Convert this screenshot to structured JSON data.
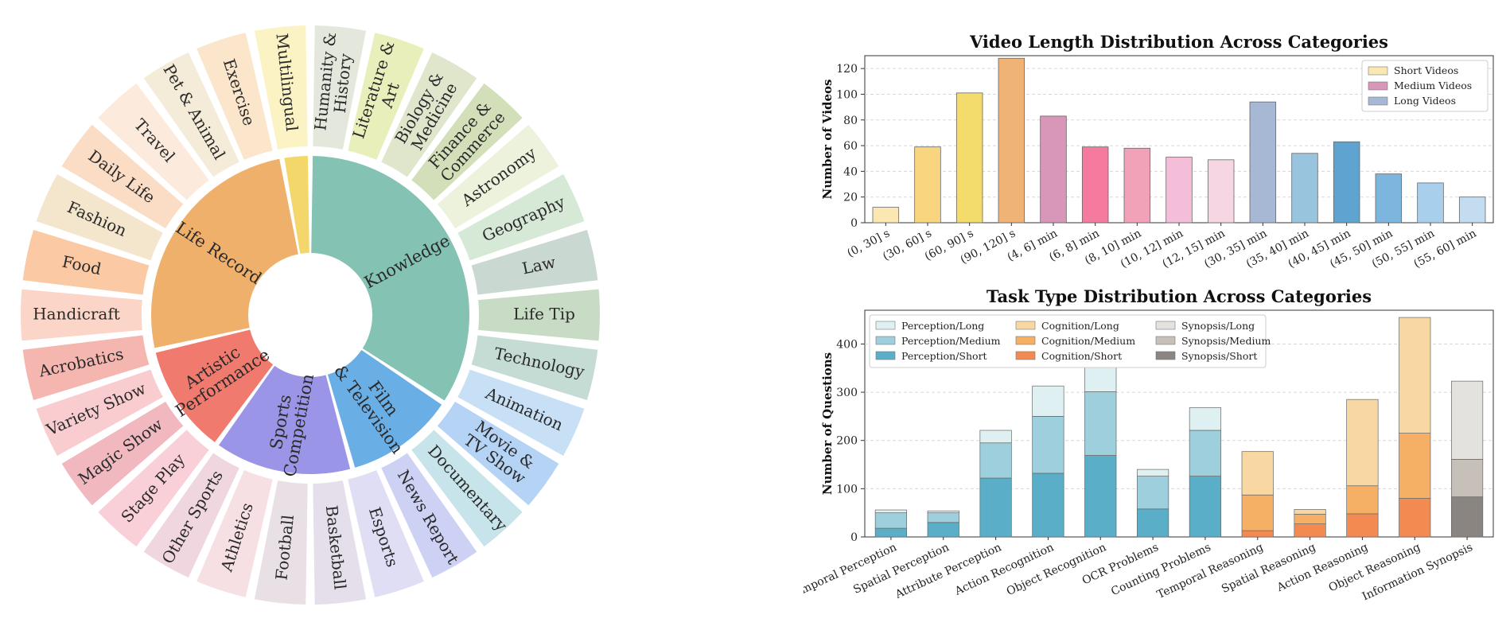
{
  "colors": {
    "grid": "#d8d8d8",
    "axis": "#333333",
    "text": "#222222"
  },
  "chart_data": [
    {
      "type": "sunburst",
      "title": "",
      "inner": [
        {
          "label": "Knowledge",
          "color": "#84c2b3",
          "span": 12
        },
        {
          "label": "Film & Television",
          "color": "#6aaee6",
          "span": 4
        },
        {
          "label": "Sports Competition",
          "color": "#9a95e6",
          "span": 5
        },
        {
          "label": "Artistic Performance",
          "color": "#f07a6e",
          "span": 4
        },
        {
          "label": "Life Record",
          "color": "#efb06c",
          "span": 9
        },
        {
          "label": "Multilingual",
          "color": "#f4d76a",
          "span": 1
        }
      ],
      "outer": [
        {
          "label": "Humanity & History",
          "color": "#e4e8dc"
        },
        {
          "label": "Literature & Art",
          "color": "#e8efbb"
        },
        {
          "label": "Biology & Medicine",
          "color": "#dfe6cc"
        },
        {
          "label": "Finance & Commerce",
          "color": "#d2dfb8"
        },
        {
          "label": "Astronomy",
          "color": "#edf2dc"
        },
        {
          "label": "Geography",
          "color": "#d6e8d6"
        },
        {
          "label": "Law",
          "color": "#c9d8d0"
        },
        {
          "label": "Life Tip",
          "color": "#c8dbc4"
        },
        {
          "label": "Technology",
          "color": "#c4dcd4"
        },
        {
          "label": "Animation",
          "color": "#c8e0f6"
        },
        {
          "label": "Movie & TV Show",
          "color": "#b5d3f4"
        },
        {
          "label": "Documentary",
          "color": "#c6e4ea"
        },
        {
          "label": "News Report",
          "color": "#cdd2f4"
        },
        {
          "label": "Esports",
          "color": "#e0def4"
        },
        {
          "label": "Basketball",
          "color": "#e4dfea"
        },
        {
          "label": "Football",
          "color": "#e8e0e4"
        },
        {
          "label": "Athletics",
          "color": "#f6e0e4"
        },
        {
          "label": "Other Sports",
          "color": "#f0d6de"
        },
        {
          "label": "Stage Play",
          "color": "#fad0d8"
        },
        {
          "label": "Magic Show",
          "color": "#f1b8c0"
        },
        {
          "label": "Variety Show",
          "color": "#f9cdd0"
        },
        {
          "label": "Acrobatics",
          "color": "#f5b6b0"
        },
        {
          "label": "Handicraft",
          "color": "#fbd6c8"
        },
        {
          "label": "Food",
          "color": "#fbc9a4"
        },
        {
          "label": "Fashion",
          "color": "#f4e6cc"
        },
        {
          "label": "Daily Life",
          "color": "#fbdcc4"
        },
        {
          "label": "Travel",
          "color": "#fcebdc"
        },
        {
          "label": "Pet & Animal",
          "color": "#f4ecd8"
        },
        {
          "label": "Exercise",
          "color": "#fbe6cc"
        },
        {
          "label": "Multilingual",
          "color": "#fbf3c4"
        }
      ]
    },
    {
      "type": "bar",
      "title": "Video Length Distribution Across Categories",
      "xlabel": "",
      "ylabel": "Number of Videos",
      "ylim": [
        0,
        130
      ],
      "yticks": [
        0,
        20,
        40,
        60,
        80,
        100,
        120
      ],
      "categories": [
        "(0, 30] s",
        "(30, 60] s",
        "(60, 90] s",
        "(90, 120] s",
        "(4, 6] min",
        "(6, 8] min",
        "(8, 10] min",
        "(10, 12] min",
        "(12, 15] min",
        "(30, 35] min",
        "(35, 40] min",
        "(40, 45] min",
        "(45, 50] min",
        "(50, 55] min",
        "(55, 60] min"
      ],
      "values": [
        12,
        59,
        101,
        128,
        83,
        59,
        58,
        51,
        49,
        94,
        54,
        63,
        38,
        31,
        20
      ],
      "bar_colors": [
        "#fbe7b2",
        "#f9d57f",
        "#f3dc6b",
        "#efb475",
        "#d896b8",
        "#f47a9e",
        "#f2a2b8",
        "#f4bed8",
        "#f7d6e4",
        "#a6b8d4",
        "#98c4de",
        "#5fa4d0",
        "#7cb6de",
        "#a8d0ec",
        "#c4dcf0"
      ],
      "legend": [
        {
          "label": "Short Videos",
          "color": "#fbe7b2"
        },
        {
          "label": "Medium Videos",
          "color": "#d896b8"
        },
        {
          "label": "Long Videos",
          "color": "#a6b8d4"
        }
      ],
      "legend_position": "top-right",
      "grid": true
    },
    {
      "type": "stacked_bar",
      "title": "Task Type Distribution Across Categories",
      "xlabel": "",
      "ylabel": "Number of Questions",
      "ylim": [
        0,
        470
      ],
      "yticks": [
        0,
        100,
        200,
        300,
        400
      ],
      "categories": [
        "Temporal Perception",
        "Spatial Perception",
        "Attribute Perception",
        "Action Recognition",
        "Object Recognition",
        "OCR Problems",
        "Counting Problems",
        "Temporal Reasoning",
        "Spatial Reasoning",
        "Action Reasoning",
        "Object Reasoning",
        "Information Synopsis"
      ],
      "category_group": [
        "perception",
        "perception",
        "perception",
        "perception",
        "perception",
        "perception",
        "perception",
        "cognition",
        "cognition",
        "cognition",
        "cognition",
        "synopsis"
      ],
      "stacks": {
        "short": [
          18,
          30,
          122,
          132,
          169,
          58,
          126,
          13,
          27,
          48,
          80,
          83
        ],
        "medium": [
          32,
          20,
          73,
          118,
          132,
          68,
          95,
          74,
          20,
          58,
          135,
          78
        ],
        "long": [
          6,
          4,
          26,
          63,
          53,
          14,
          47,
          90,
          10,
          179,
          240,
          162
        ]
      },
      "group_colors": {
        "perception": {
          "short": "#5aaec8",
          "medium": "#9dcfdc",
          "long": "#dff0f2"
        },
        "cognition": {
          "short": "#f38a52",
          "medium": "#f6b066",
          "long": "#f8d7a2"
        },
        "synopsis": {
          "short": "#8a8580",
          "medium": "#c6c0b8",
          "long": "#e4e2de"
        }
      },
      "legend": [
        {
          "label": "Perception/Long",
          "color": "#dff0f2"
        },
        {
          "label": "Perception/Medium",
          "color": "#9dcfdc"
        },
        {
          "label": "Perception/Short",
          "color": "#5aaec8"
        },
        {
          "label": "Cognition/Long",
          "color": "#f8d7a2"
        },
        {
          "label": "Cognition/Medium",
          "color": "#f6b066"
        },
        {
          "label": "Cognition/Short",
          "color": "#f38a52"
        },
        {
          "label": "Synopsis/Long",
          "color": "#e4e2de"
        },
        {
          "label": "Synopsis/Medium",
          "color": "#c6c0b8"
        },
        {
          "label": "Synopsis/Short",
          "color": "#8a8580"
        }
      ],
      "legend_position": "top-left",
      "grid": true
    }
  ]
}
